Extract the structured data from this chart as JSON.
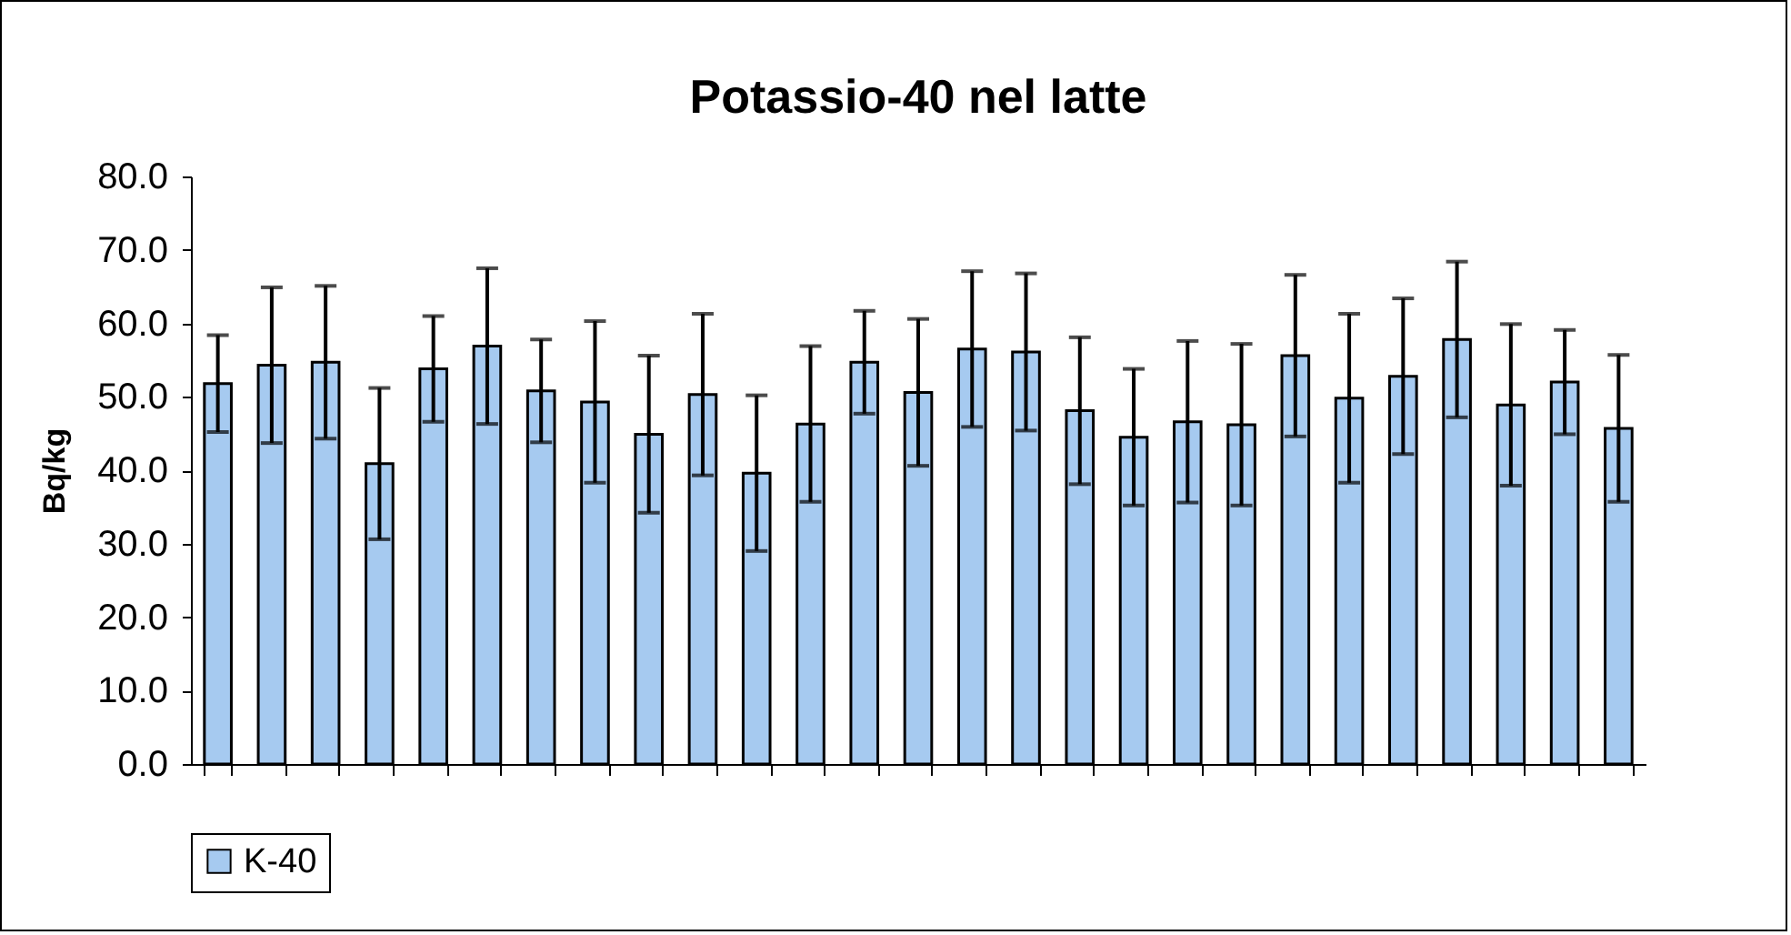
{
  "chart_data": {
    "type": "bar",
    "title": "Potassio-40 nel  latte",
    "ylabel": "Bq/kg",
    "categories": [
      null,
      null,
      null,
      null,
      null,
      null,
      null,
      null,
      null,
      null,
      null,
      null,
      null,
      null,
      null,
      null,
      null,
      null,
      null,
      null,
      null,
      null,
      null,
      null,
      null,
      null,
      null
    ],
    "series": [
      {
        "name": "K-40",
        "color": "#a6caf0",
        "values": [
          51.8,
          54.3,
          54.7,
          40.9,
          53.8,
          56.9,
          50.8,
          49.3,
          44.9,
          50.3,
          39.6,
          46.3,
          54.7,
          50.6,
          56.5,
          56.1,
          48.1,
          44.5,
          46.6,
          46.2,
          55.6,
          49.8,
          52.8,
          57.8,
          48.9,
          52.0,
          45.7
        ],
        "errors": [
          6.6,
          10.6,
          10.4,
          10.3,
          7.2,
          10.6,
          7.0,
          11.0,
          10.7,
          11.0,
          10.6,
          10.6,
          7.0,
          10.0,
          10.6,
          10.7,
          10.0,
          9.3,
          11.0,
          11.0,
          11.0,
          11.5,
          10.6,
          10.6,
          11.0,
          7.1,
          10.0
        ]
      }
    ],
    "ylim": [
      0,
      80
    ],
    "yticks": [
      {
        "value": 0,
        "label": "0.0"
      },
      {
        "value": 10,
        "label": "10.0"
      },
      {
        "value": 20,
        "label": "20.0"
      },
      {
        "value": 30,
        "label": "30.0"
      },
      {
        "value": 40,
        "label": "40.0"
      },
      {
        "value": 50,
        "label": "50.0"
      },
      {
        "value": 60,
        "label": "60.0"
      },
      {
        "value": 70,
        "label": "70.0"
      },
      {
        "value": 80,
        "label": "80.0"
      }
    ],
    "grid": false,
    "legend": "bottom"
  }
}
